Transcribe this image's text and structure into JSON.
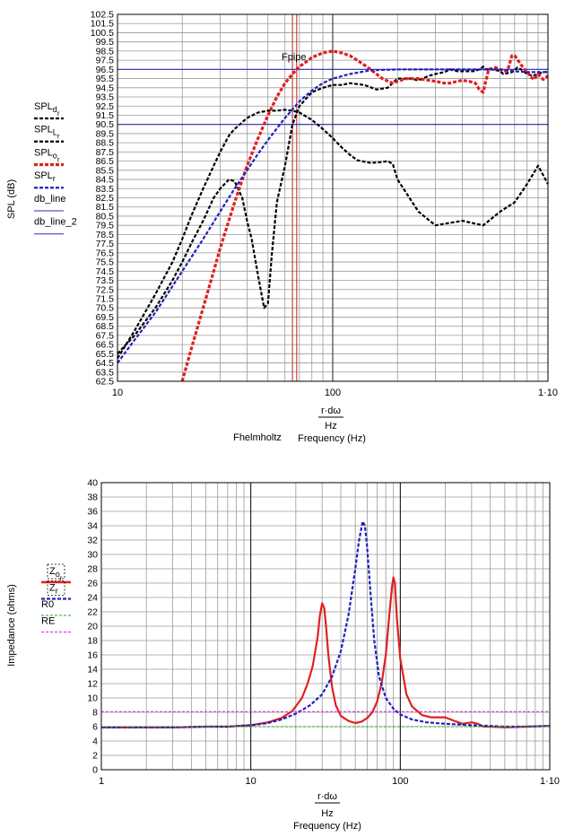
{
  "chart_data": [
    {
      "type": "line",
      "x_scale": "log",
      "xlim": [
        10,
        1000
      ],
      "ylim": [
        62.5,
        102.5
      ],
      "y_tick_step": 1,
      "x_tick_labels": [
        "10",
        "100",
        "1·10"
      ],
      "x_tick_values": [
        10,
        100,
        1000
      ],
      "ylabel": "SPL (dB)",
      "xlabel_num": "r·dω",
      "xlabel_den": "Hz",
      "xlabel": "Frequency (Hz)",
      "xlabel_extra": "Fhelmholtz",
      "annotation": "Fpipe",
      "vlines": [
        {
          "x": 65,
          "color": "#c0392b"
        },
        {
          "x": 68,
          "color": "#c0392b"
        },
        {
          "x": 100,
          "color": "#333333"
        }
      ],
      "hlines": [
        {
          "y": 96.5,
          "color": "#2e2eb8"
        },
        {
          "y": 90.5,
          "color": "#2e2eb8"
        }
      ],
      "legend": [
        {
          "base": "SPL",
          "sub": "d",
          "subsub": "r",
          "color": "#000000",
          "dash": "4,2",
          "width": 2.2
        },
        {
          "base": "SPL",
          "sub": "L",
          "subsub": "r",
          "color": "#000000",
          "dash": "4,2",
          "width": 2.2
        },
        {
          "base": "SPL",
          "sub": "o",
          "subsub": "r",
          "color": "#e02020",
          "dash": "4,2",
          "width": 3.2
        },
        {
          "base": "SPL",
          "sub": "r",
          "subsub": "",
          "color": "#2020c0",
          "dash": "4,2",
          "width": 2.2
        },
        {
          "base": "db_line",
          "sub": "",
          "subsub": "",
          "color": "#2e2eb8",
          "dash": "",
          "width": 1
        },
        {
          "base": "db_line_2",
          "sub": "",
          "subsub": "",
          "color": "#2e2eb8",
          "dash": "",
          "width": 1
        }
      ],
      "series": [
        {
          "legend_index": 0,
          "color": "#000000",
          "dash": "4,2",
          "width": 2.2,
          "x": [
            10,
            12,
            15,
            18,
            20,
            22,
            25,
            28,
            30,
            33,
            35,
            40,
            45,
            50,
            55,
            60,
            65,
            70,
            80,
            90,
            100,
            110,
            120,
            130,
            150,
            170,
            180,
            190,
            200,
            250,
            300,
            400,
            500,
            600,
            700,
            800,
            900,
            1000
          ],
          "y": [
            65,
            68,
            72,
            75.5,
            78,
            80.5,
            83.5,
            86,
            87.5,
            89.3,
            90,
            91.2,
            91.8,
            92,
            92,
            92.1,
            92,
            91.8,
            91,
            90,
            89,
            88,
            87.2,
            86.6,
            86.3,
            86.4,
            86.5,
            86.2,
            84.5,
            81,
            79.5,
            80,
            79.5,
            81,
            82,
            84,
            86,
            84
          ]
        },
        {
          "legend_index": 1,
          "color": "#000000",
          "dash": "4,2",
          "width": 2.2,
          "x": [
            10,
            12,
            15,
            18,
            20,
            22,
            25,
            28,
            30,
            33,
            35,
            38,
            40,
            42,
            45,
            48,
            50,
            52,
            55,
            60,
            65,
            70,
            80,
            90,
            100,
            110,
            120,
            140,
            160,
            180,
            200,
            230,
            250,
            280,
            300,
            330,
            350,
            380,
            400,
            420,
            450,
            480,
            500,
            520,
            550,
            580,
            600,
            620,
            650,
            680,
            700,
            720,
            750,
            780,
            800,
            850,
            900,
            950,
            1000
          ],
          "y": [
            65.5,
            67.5,
            70.5,
            73.5,
            75.5,
            77.5,
            80,
            82.5,
            83.5,
            84.5,
            84.3,
            82.5,
            80,
            78,
            74,
            70.5,
            71,
            76,
            82,
            86,
            90.5,
            92.5,
            94,
            94.5,
            94.8,
            94.8,
            95,
            94.8,
            94.3,
            94.5,
            95.5,
            95.5,
            95.3,
            95.8,
            96,
            96.2,
            96.5,
            96.3,
            96.3,
            96.3,
            96.3,
            96.5,
            96.8,
            96.5,
            96.5,
            96.4,
            96.3,
            96,
            96.1,
            96.2,
            96.4,
            96.7,
            96.5,
            96.2,
            96,
            95.8,
            96,
            96.2,
            96.2
          ]
        },
        {
          "legend_index": 2,
          "color": "#e02020",
          "dash": "4,2",
          "width": 3.2,
          "x": [
            20,
            22,
            25,
            28,
            30,
            35,
            40,
            45,
            50,
            55,
            60,
            65,
            70,
            75,
            80,
            90,
            100,
            110,
            120,
            130,
            150,
            170,
            190,
            200,
            220,
            250,
            280,
            300,
            330,
            350,
            380,
            400,
            430,
            460,
            480,
            500,
            530,
            570,
            600,
            620,
            650,
            680,
            700,
            720,
            750,
            780,
            800,
            830,
            860,
            900,
            950,
            1000
          ],
          "y": [
            62.5,
            66,
            70.5,
            74.5,
            77,
            82,
            86,
            89,
            91.5,
            93.5,
            95,
            96,
            96.8,
            97.3,
            97.8,
            98.3,
            98.5,
            98.3,
            98,
            97.5,
            96.5,
            95.5,
            95,
            95.2,
            95.5,
            95.5,
            95.3,
            95.2,
            95,
            95,
            95.2,
            95.3,
            95.2,
            95,
            94.3,
            94,
            96.5,
            96.7,
            96.5,
            96.3,
            96.4,
            98,
            98,
            97.6,
            97,
            96.5,
            96.3,
            95.7,
            95.4,
            96,
            95.4,
            95.8
          ]
        },
        {
          "legend_index": 3,
          "color": "#2020c0",
          "dash": "4,2",
          "width": 2.2,
          "x": [
            10,
            12,
            15,
            20,
            25,
            30,
            35,
            40,
            45,
            50,
            60,
            70,
            80,
            90,
            100,
            120,
            150,
            200,
            300,
            400,
            500,
            600,
            700,
            800,
            900,
            1000
          ],
          "y": [
            64.5,
            67,
            70,
            74.5,
            78,
            81,
            83.5,
            85.5,
            87.3,
            88.8,
            91.2,
            93,
            94.2,
            95,
            95.5,
            96,
            96.4,
            96.5,
            96.5,
            96.5,
            96.5,
            96.5,
            96.3,
            96.2,
            96.2,
            96.2
          ]
        }
      ]
    },
    {
      "type": "line",
      "x_scale": "log",
      "xlim": [
        1,
        1000
      ],
      "ylim": [
        0,
        40
      ],
      "y_tick_step": 2,
      "x_tick_labels": [
        "1",
        "10",
        "100",
        "1·10"
      ],
      "x_tick_values": [
        1,
        10,
        100,
        1000
      ],
      "ylabel": "Impedance (ohms)",
      "xlabel_num": "r·dω",
      "xlabel_den": "Hz",
      "xlabel": "Frequency (Hz)",
      "hlines": [],
      "vlines": [],
      "legend": [
        {
          "base": "Z",
          "sub": "o",
          "subsub": "r",
          "color": "#e02020",
          "dash": "",
          "width": 2.4,
          "boxed": true
        },
        {
          "base": "Z",
          "sub": "r",
          "subsub": "",
          "color": "#2020c0",
          "dash": "4,2",
          "width": 2.2,
          "boxed": true
        },
        {
          "base": "R0",
          "sub": "",
          "subsub": "",
          "color": "#22aa22",
          "dash": "3,2",
          "width": 1
        },
        {
          "base": "RE",
          "sub": "",
          "subsub": "",
          "color": "#dd22dd",
          "dash": "3,2",
          "width": 1
        }
      ],
      "series": [
        {
          "legend_index": 0,
          "color": "#e02020",
          "dash": "",
          "width": 2.2,
          "x": [
            1,
            3,
            5,
            7,
            10,
            13,
            16,
            19,
            22,
            24,
            26,
            28,
            29,
            30,
            31,
            32,
            33,
            35,
            37,
            40,
            45,
            50,
            55,
            60,
            65,
            70,
            75,
            80,
            84,
            88,
            90,
            92,
            95,
            100,
            110,
            120,
            140,
            160,
            180,
            200,
            230,
            260,
            300,
            330,
            360,
            400,
            500,
            700,
            1000
          ],
          "y": [
            5.9,
            5.9,
            6,
            6,
            6.2,
            6.6,
            7.2,
            8.2,
            10,
            12,
            14.5,
            18.5,
            21.5,
            23.2,
            22.5,
            19.5,
            16,
            11.5,
            9,
            7.5,
            6.8,
            6.5,
            6.7,
            7.2,
            8,
            9.5,
            12,
            16,
            21,
            25.5,
            26.8,
            26,
            21,
            15.5,
            10.5,
            8.8,
            7.6,
            7.3,
            7.3,
            7.3,
            6.8,
            6.4,
            6.6,
            6.4,
            6,
            6,
            5.9,
            6,
            6.1
          ]
        },
        {
          "legend_index": 1,
          "color": "#2020c0",
          "dash": "4,2",
          "width": 2.2,
          "x": [
            1,
            3,
            5,
            7,
            10,
            13,
            16,
            20,
            25,
            30,
            35,
            40,
            45,
            50,
            53,
            56,
            58,
            60,
            63,
            67,
            72,
            80,
            90,
            100,
            120,
            150,
            200,
            300,
            400,
            500,
            700,
            1000
          ],
          "y": [
            5.9,
            5.9,
            6,
            6,
            6.2,
            6.5,
            7,
            7.8,
            9,
            10.5,
            13,
            16.5,
            21.5,
            28,
            32,
            34.6,
            34,
            31,
            25,
            18,
            13,
            10,
            8.5,
            7.7,
            7,
            6.6,
            6.4,
            6.2,
            6.1,
            6,
            6,
            6.1
          ]
        },
        {
          "legend_index": 2,
          "color": "#22aa22",
          "dash": "3,2",
          "width": 1,
          "x": [
            1,
            1000
          ],
          "y": [
            6,
            6
          ]
        },
        {
          "legend_index": 3,
          "color": "#dd22dd",
          "dash": "3,2",
          "width": 1,
          "x": [
            1,
            1000
          ],
          "y": [
            8.1,
            8.1
          ]
        }
      ]
    }
  ]
}
